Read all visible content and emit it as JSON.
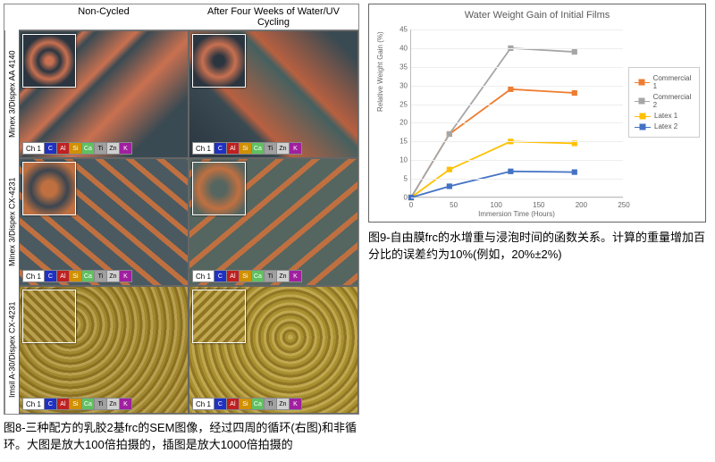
{
  "figure8": {
    "column_headers": [
      "Non-Cycled",
      "After Four Weeks of Water/UV Cycling"
    ],
    "row_labels": [
      "Minex 3/Dispex AA 4140",
      "Minex 3/Dispex CX-4231",
      "Imsil A-30/Dispex CX-4231"
    ],
    "element_bar": {
      "label": "Ch 1",
      "elements": [
        {
          "sym": "C",
          "color": "#2030c0"
        },
        {
          "sym": "Al",
          "color": "#c02020"
        },
        {
          "sym": "Si",
          "color": "#d09000"
        },
        {
          "sym": "Ca",
          "color": "#60c060"
        },
        {
          "sym": "Ti",
          "color": "#a0a0a0"
        },
        {
          "sym": "Zn",
          "color": "#d0d0d0"
        },
        {
          "sym": "K",
          "color": "#a020a0"
        }
      ]
    },
    "cells": [
      [
        {
          "bg": "linear-gradient(135deg,#3a4a52 0%,#3a4a52 20%,#c97050 22%,#3a4a52 26%,#c97050 40%,#3a4a52 44%,#c97050 60%,#3a4a52 80%)",
          "inset": "radial-gradient(circle,#c97050 10%,#2a3540 30%,#c97050 50%,#2a3540 70%)"
        },
        {
          "bg": "linear-gradient(45deg,#2a3540 0%,#3a4a52 30%,#b86040 35%,#456060 60%,#b86040 64%,#3a4a52 90%)",
          "inset": "radial-gradient(circle,#2a3540 15%,#c97050 45%,#2a3540 75%)"
        }
      ],
      [
        {
          "bg": "repeating-linear-gradient(40deg,#4a5a60 0 8px,#c07040 8px 14px,#4a5a60 14px 22px)",
          "inset": "radial-gradient(circle,#c07040 20%,#3a4550 50%,#c07040 80%)"
        },
        {
          "bg": "repeating-linear-gradient(140deg,#556560 0 10px,#c07040 10px 16px,#556560 16px 26px)",
          "inset": "radial-gradient(circle,#556560 20%,#c07040 55%,#556560 85%)"
        }
      ],
      [
        {
          "bg": "repeating-radial-gradient(circle at 30% 30%,#b8a050 0 3px,#a08830 3px 6px,#8a7020 6px 9px)",
          "inset": "repeating-linear-gradient(45deg,#8a7020 0 4px,#b8a050 4px 8px)"
        },
        {
          "bg": "repeating-radial-gradient(circle at 60% 40%,#c0a850 0 3px,#a89030 3px 6px,#907525 6px 9px)",
          "inset": "repeating-linear-gradient(135deg,#907525 0 4px,#c0a850 4px 8px)"
        }
      ]
    ],
    "caption": "图8-三种配方的乳胶2基frc的SEM图像，经过四周的循环(右图)和非循环。大图是放大100倍拍摄的，插图是放大1000倍拍摄的"
  },
  "figure9": {
    "chart": {
      "type": "line",
      "title": "Water Weight Gain of Initial Films",
      "title_fontsize": 11,
      "xlabel": "Immersion Time (Hours)",
      "ylabel": "Relative Weight Gain (%)",
      "label_fontsize": 8,
      "xlim": [
        0,
        250
      ],
      "ylim": [
        0,
        45
      ],
      "xtick_step": 50,
      "ytick_step": 5,
      "background_color": "#ffffff",
      "grid_color": "#eeeeee",
      "axis_color": "#bbbbbb",
      "tick_fontsize": 8,
      "line_width": 1.8,
      "marker_size": 5,
      "series": [
        {
          "name": "Commercial 1",
          "color": "#ed7d31",
          "marker": "square-filled",
          "x": [
            0,
            45,
            117,
            192
          ],
          "y": [
            0,
            17,
            29,
            28
          ]
        },
        {
          "name": "Commercial 2",
          "color": "#a6a6a6",
          "marker": "square-filled",
          "x": [
            0,
            45,
            117,
            192
          ],
          "y": [
            0,
            17,
            40,
            39
          ]
        },
        {
          "name": "Latex 1",
          "color": "#ffc000",
          "marker": "square-filled",
          "x": [
            0,
            45,
            117,
            192
          ],
          "y": [
            0,
            7.5,
            15,
            14.5
          ]
        },
        {
          "name": "Latex 2",
          "color": "#4472c4",
          "marker": "square-filled",
          "x": [
            0,
            45,
            117,
            192
          ],
          "y": [
            0,
            3,
            7,
            6.8
          ]
        }
      ],
      "legend_position": "right"
    },
    "caption": "图9-自由膜frc的水增重与浸泡时间的函数关系。计算的重量增加百分比的误差约为10%(例如，20%±2%)"
  }
}
